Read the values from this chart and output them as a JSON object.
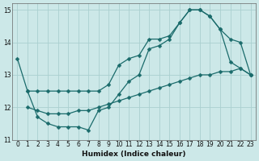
{
  "xlabel": "Humidex (Indice chaleur)",
  "xlim": [
    -0.5,
    23.5
  ],
  "ylim": [
    11,
    15.2
  ],
  "yticks": [
    11,
    12,
    13,
    14,
    15
  ],
  "xticks": [
    0,
    1,
    2,
    3,
    4,
    5,
    6,
    7,
    8,
    9,
    10,
    11,
    12,
    13,
    14,
    15,
    16,
    17,
    18,
    19,
    20,
    21,
    22,
    23
  ],
  "bg_color": "#cce8e8",
  "grid_color": "#aad0d0",
  "line_color": "#1a6b6b",
  "line1_x": [
    0,
    1,
    2,
    3,
    4,
    5,
    6,
    7,
    8,
    9,
    10,
    11,
    12,
    13,
    14,
    15,
    16,
    17,
    18,
    19,
    20,
    21,
    22,
    23
  ],
  "line1_y": [
    13.5,
    12.5,
    12.5,
    12.5,
    12.5,
    12.5,
    12.5,
    12.5,
    12.5,
    12.7,
    13.3,
    13.5,
    13.6,
    14.1,
    14.1,
    14.2,
    14.6,
    15.0,
    15.0,
    14.8,
    14.4,
    14.1,
    14.0,
    13.0
  ],
  "line2_x": [
    1,
    2,
    3,
    4,
    5,
    6,
    7,
    8,
    9,
    10,
    11,
    12,
    13,
    14,
    15,
    16,
    17,
    18,
    19,
    20,
    21,
    22,
    23
  ],
  "line2_y": [
    12.5,
    11.7,
    11.5,
    11.4,
    11.4,
    11.4,
    11.3,
    11.9,
    12.0,
    12.4,
    12.8,
    13.0,
    13.8,
    13.9,
    14.1,
    14.6,
    15.0,
    15.0,
    14.8,
    14.4,
    13.4,
    13.2,
    13.0
  ],
  "line3_x": [
    1,
    2,
    3,
    4,
    5,
    6,
    7,
    8,
    9,
    10,
    11,
    12,
    13,
    14,
    15,
    16,
    17,
    18,
    19,
    20,
    21,
    22,
    23
  ],
  "line3_y": [
    12.0,
    11.9,
    11.8,
    11.8,
    11.8,
    11.9,
    11.9,
    12.0,
    12.1,
    12.2,
    12.3,
    12.4,
    12.5,
    12.6,
    12.7,
    12.8,
    12.9,
    13.0,
    13.0,
    13.1,
    13.1,
    13.2,
    13.0
  ]
}
